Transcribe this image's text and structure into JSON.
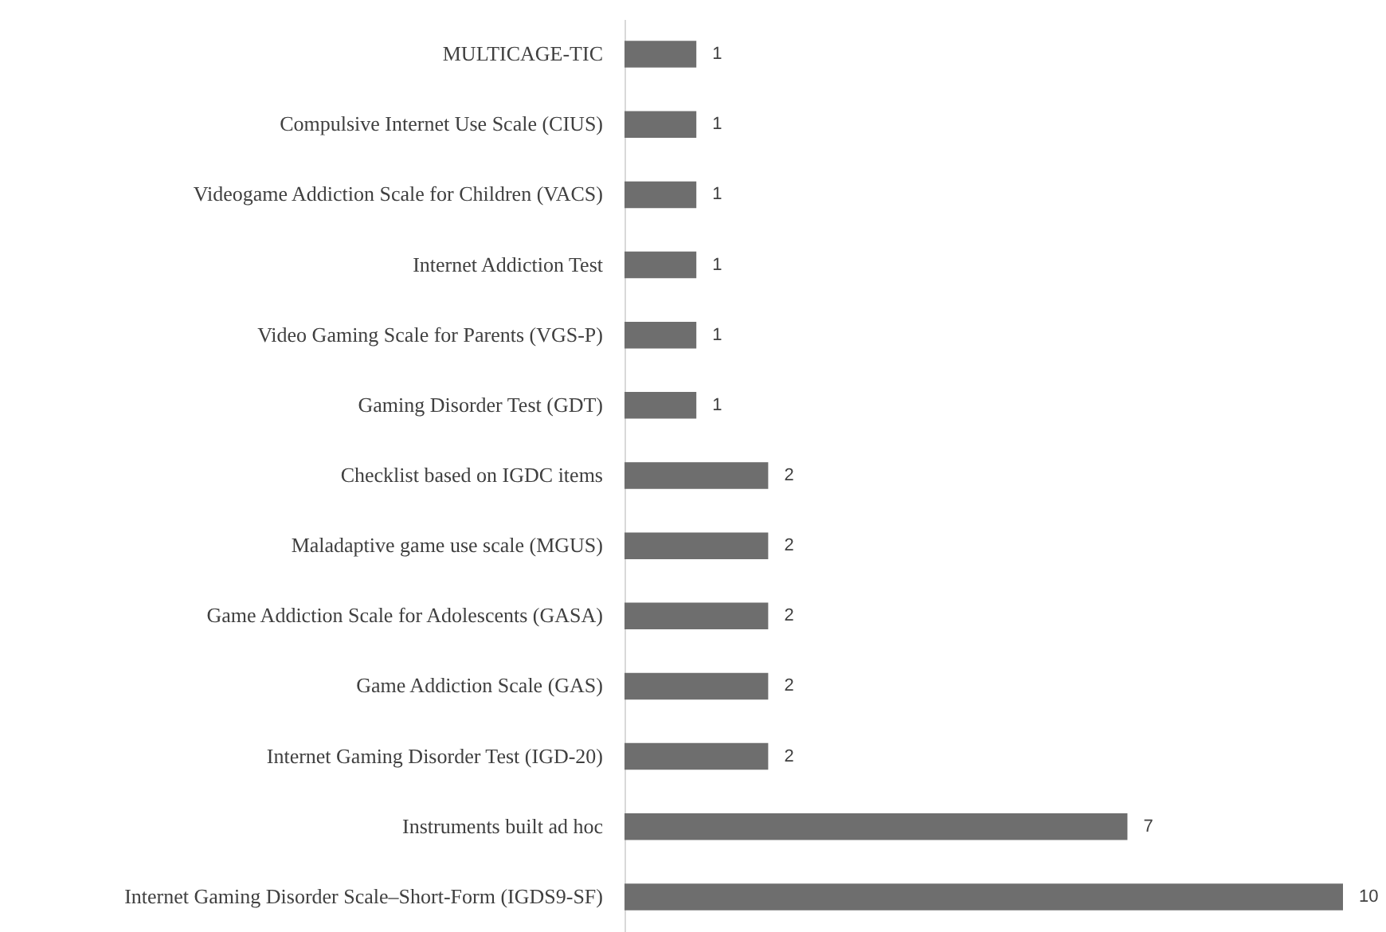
{
  "chart_data": {
    "type": "bar",
    "orientation": "horizontal",
    "data_labels": true,
    "color": "#6e6e6e",
    "categories": [
      "MULTICAGE-TIC",
      "Compulsive Internet Use Scale (CIUS)",
      "Videogame Addiction Scale for Children (VACS)",
      "Internet Addiction Test",
      "Video Gaming Scale for Parents (VGS-P)",
      "Gaming Disorder Test (GDT)",
      "Checklist based on IGDC items",
      "Maladaptive game use scale (MGUS)",
      "Game Addiction Scale for Adolescents (GASA)",
      "Game Addiction Scale (GAS)",
      "Internet Gaming Disorder Test (IGD-20)",
      "Instruments built ad hoc",
      "Internet Gaming Disorder Scale–Short-Form (IGDS9-SF)"
    ],
    "values": [
      1,
      1,
      1,
      1,
      1,
      1,
      2,
      2,
      2,
      2,
      2,
      7,
      10
    ]
  }
}
